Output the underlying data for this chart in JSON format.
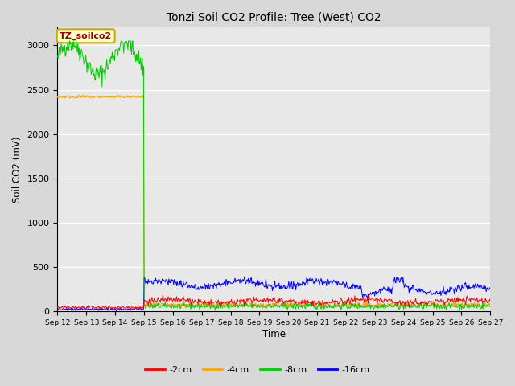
{
  "title": "Tonzi Soil CO2 Profile: Tree (West) CO2",
  "ylabel": "Soil CO2 (mV)",
  "xlabel": "Time",
  "legend_label": "TZ_soilco2",
  "series_labels": [
    "-2cm",
    "-4cm",
    "-8cm",
    "-16cm"
  ],
  "series_colors": [
    "#ff0000",
    "#ffa500",
    "#00cc00",
    "#0000ff"
  ],
  "ylim": [
    0,
    3200
  ],
  "yticks": [
    0,
    500,
    1000,
    1500,
    2000,
    2500,
    3000
  ],
  "background_color": "#d8d8d8",
  "plot_bg_color": "#e8e8e8",
  "n_points": 720,
  "seed": 42,
  "drop_day": 3.0,
  "total_days": 15
}
